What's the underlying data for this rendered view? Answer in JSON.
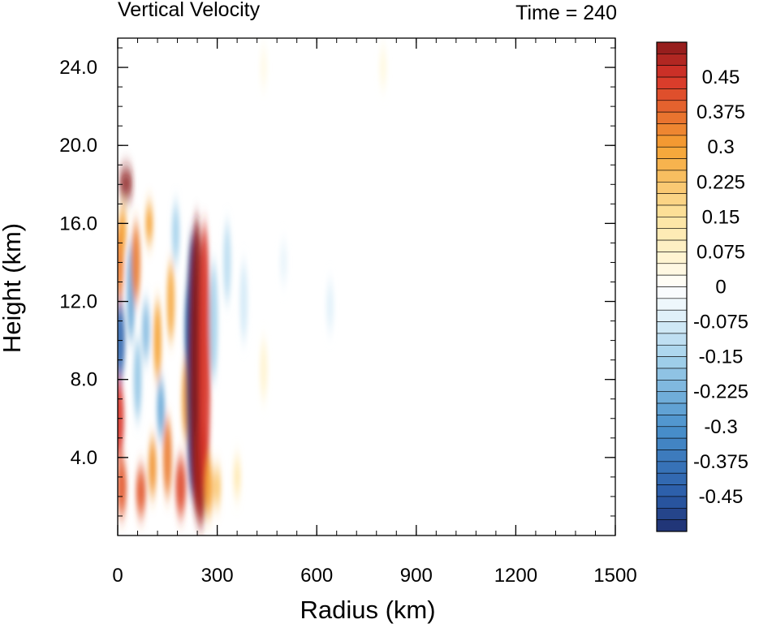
{
  "chart_data": {
    "type": "heatmap",
    "title_left": "Vertical Velocity",
    "title_right": "Time = 240",
    "xlabel": "Radius (km)",
    "ylabel": "Height (km)",
    "xlim": [
      0,
      1500
    ],
    "ylim": [
      0,
      25.5
    ],
    "x_ticks": [
      0,
      300,
      600,
      900,
      1200,
      1500
    ],
    "x_tick_labels": [
      "0",
      "300",
      "600",
      "900",
      "1200",
      "1500"
    ],
    "y_ticks": [
      4,
      8,
      12,
      16,
      20,
      24
    ],
    "y_tick_labels": [
      "4.0",
      "8.0",
      "12.0",
      "16.0",
      "20.0",
      "24.0"
    ],
    "x_minor_step": 60,
    "y_minor_step": 1,
    "colorbar": {
      "min": -0.525,
      "max": 0.525,
      "step": 0.025,
      "labels": [
        {
          "value": 0.45,
          "text": "0.45"
        },
        {
          "value": 0.375,
          "text": "0.375"
        },
        {
          "value": 0.3,
          "text": "0.3"
        },
        {
          "value": 0.225,
          "text": "0.225"
        },
        {
          "value": 0.15,
          "text": "0.15"
        },
        {
          "value": 0.075,
          "text": "0.075"
        },
        {
          "value": 0,
          "text": "0"
        },
        {
          "value": -0.075,
          "text": "-0.075"
        },
        {
          "value": -0.15,
          "text": "-0.15"
        },
        {
          "value": -0.225,
          "text": "-0.225"
        },
        {
          "value": -0.3,
          "text": "-0.3"
        },
        {
          "value": -0.375,
          "text": "-0.375"
        },
        {
          "value": -0.45,
          "text": "-0.45"
        }
      ],
      "color_stops": [
        [
          -0.525,
          "#1f2f6e"
        ],
        [
          -0.45,
          "#2a5ba8"
        ],
        [
          -0.3,
          "#4a92cc"
        ],
        [
          -0.15,
          "#a6d3ec"
        ],
        [
          -0.05,
          "#e8f4fb"
        ],
        [
          0,
          "#ffffff"
        ],
        [
          0.05,
          "#fff6d8"
        ],
        [
          0.15,
          "#fde4a0"
        ],
        [
          0.3,
          "#f5a233"
        ],
        [
          0.45,
          "#d8342a"
        ],
        [
          0.525,
          "#8a1a1a"
        ]
      ]
    },
    "features": [
      {
        "r": 2,
        "h0": 4,
        "h1": 8,
        "w": 0.45
      },
      {
        "r": 6,
        "h0": 8,
        "h1": 12,
        "w": -0.42
      },
      {
        "r": 5,
        "h0": 12,
        "h1": 16,
        "w": 0.35
      },
      {
        "r": 12,
        "h0": 1,
        "h1": 4,
        "w": 0.4
      },
      {
        "r": 25,
        "h0": 17.3,
        "h1": 18.8,
        "w": 0.55
      },
      {
        "r": 15,
        "h0": 14.5,
        "h1": 16.8,
        "w": 0.3
      },
      {
        "r": 40,
        "h0": 10,
        "h1": 15,
        "w": -0.25
      },
      {
        "r": 55,
        "h0": 12,
        "h1": 16,
        "w": 0.35
      },
      {
        "r": 60,
        "h0": 6,
        "h1": 10,
        "w": -0.18
      },
      {
        "r": 70,
        "h0": 1,
        "h1": 3.5,
        "w": 0.4
      },
      {
        "r": 85,
        "h0": 9,
        "h1": 12,
        "w": -0.2
      },
      {
        "r": 95,
        "h0": 15,
        "h1": 17,
        "w": 0.3
      },
      {
        "r": 105,
        "h0": 2,
        "h1": 5,
        "w": 0.32
      },
      {
        "r": 120,
        "h0": 8,
        "h1": 12,
        "w": 0.3
      },
      {
        "r": 130,
        "h0": 5,
        "h1": 8,
        "w": -0.25
      },
      {
        "r": 150,
        "h0": 2,
        "h1": 6,
        "w": 0.35
      },
      {
        "r": 160,
        "h0": 10,
        "h1": 14,
        "w": 0.28
      },
      {
        "r": 175,
        "h0": 14,
        "h1": 17,
        "w": -0.15
      },
      {
        "r": 190,
        "h0": 1,
        "h1": 4,
        "w": 0.42
      },
      {
        "r": 205,
        "h0": 5,
        "h1": 9,
        "w": 0.3
      },
      {
        "r": 215,
        "h0": 8,
        "h1": 13,
        "w": -0.35
      },
      {
        "r": 225,
        "h0": 2,
        "h1": 15.5,
        "w": -0.5
      },
      {
        "r": 238,
        "h0": 1,
        "h1": 16.3,
        "w": 0.55
      },
      {
        "r": 250,
        "h0": 0.5,
        "h1": 6,
        "w": 0.5
      },
      {
        "r": 262,
        "h0": 2,
        "h1": 16,
        "w": 0.45
      },
      {
        "r": 275,
        "h0": 1,
        "h1": 4,
        "w": 0.3
      },
      {
        "r": 290,
        "h0": 8,
        "h1": 14,
        "w": -0.15
      },
      {
        "r": 300,
        "h0": 1.5,
        "h1": 3.5,
        "w": 0.22
      },
      {
        "r": 330,
        "h0": 12,
        "h1": 16,
        "w": -0.12
      },
      {
        "r": 360,
        "h0": 2,
        "h1": 4,
        "w": 0.12
      },
      {
        "r": 380,
        "h0": 10,
        "h1": 14,
        "w": -0.08
      },
      {
        "r": 440,
        "h0": 7,
        "h1": 10,
        "w": 0.06
      },
      {
        "r": 500,
        "h0": 13,
        "h1": 15,
        "w": -0.05
      },
      {
        "r": 640,
        "h0": 10.5,
        "h1": 13,
        "w": -0.06
      },
      {
        "r": 440,
        "h0": 23,
        "h1": 25,
        "w": 0.03
      },
      {
        "r": 800,
        "h0": 23,
        "h1": 25,
        "w": 0.04
      }
    ]
  }
}
